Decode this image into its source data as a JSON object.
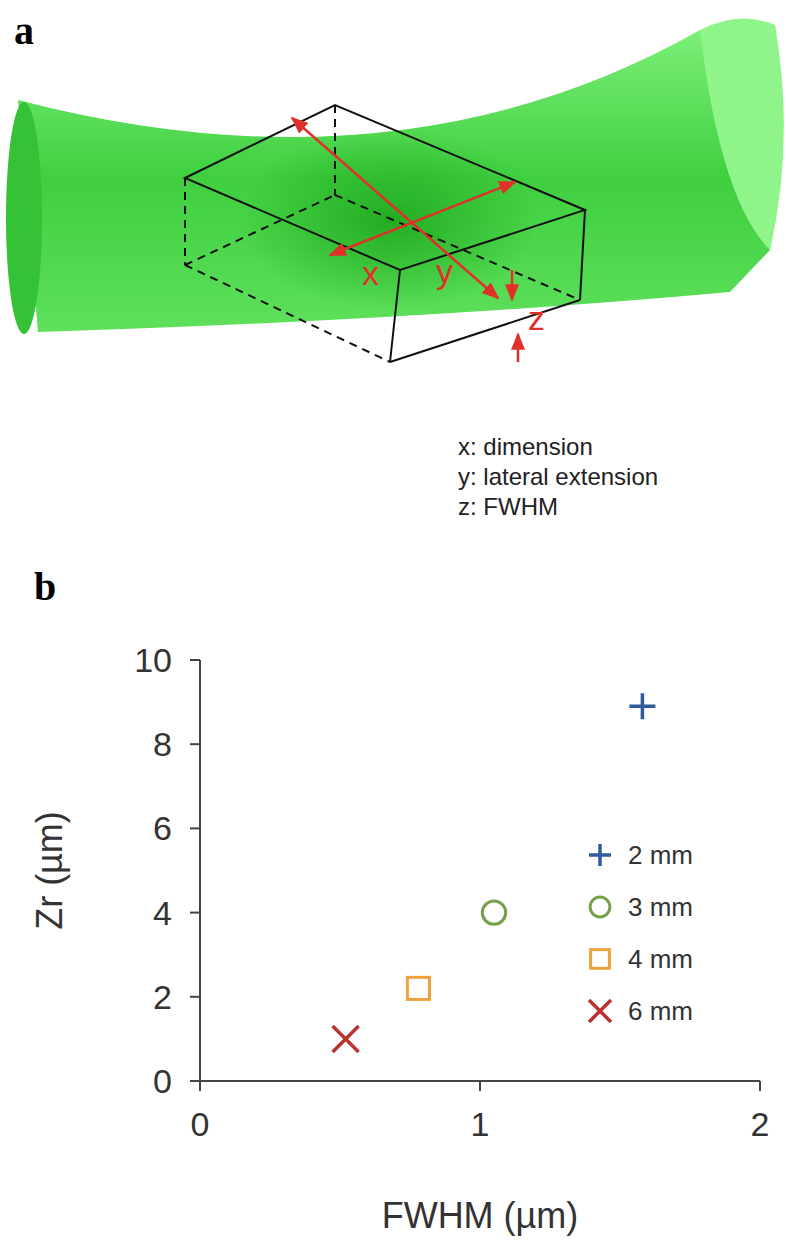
{
  "figure": {
    "panel_a": {
      "letter": "a",
      "axis_letters": [
        "x",
        "y",
        "z"
      ],
      "key_lines": [
        "x: dimension",
        "y: lateral extension",
        "z: FWHM"
      ]
    },
    "panel_b_letter": "b"
  },
  "chart_data": {
    "type": "scatter",
    "x_label": "FWHM (µm)",
    "y_label": "Zr (µm)",
    "series": [
      {
        "name": "2 mm",
        "color": "#2f5b9e",
        "marker": "plus",
        "x": [
          1.58
        ],
        "values": [
          8.9
        ]
      },
      {
        "name": "3 mm",
        "color": "#76a04a",
        "marker": "circle",
        "x": [
          1.05
        ],
        "values": [
          4.0
        ]
      },
      {
        "name": "4 mm",
        "color": "#eda23a",
        "marker": "square",
        "x": [
          0.78
        ],
        "values": [
          2.2
        ]
      },
      {
        "name": "6 mm",
        "color": "#b83230",
        "marker": "x",
        "x": [
          0.52
        ],
        "values": [
          1.0
        ]
      }
    ],
    "xlim": [
      0,
      2
    ],
    "xticks": [
      0,
      1,
      2
    ],
    "ylim": [
      0,
      10
    ],
    "yticks": [
      0,
      2,
      4,
      6,
      8,
      10
    ],
    "grid": false,
    "legend": "right"
  }
}
